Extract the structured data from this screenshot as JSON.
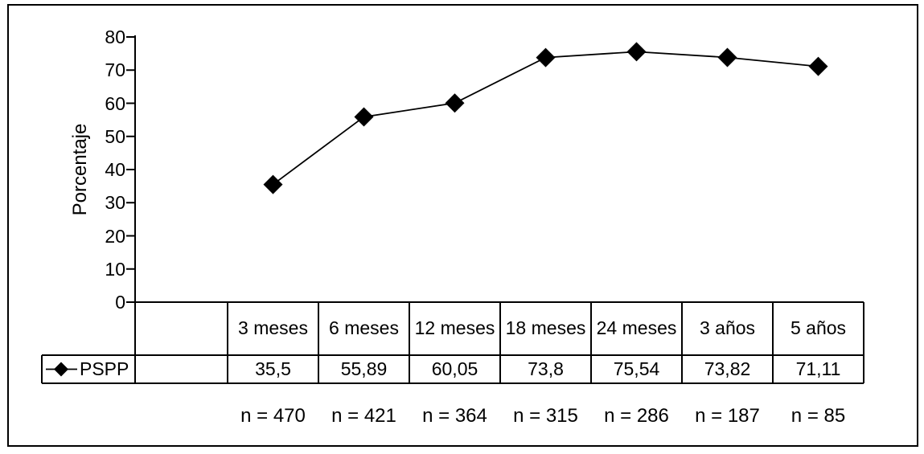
{
  "chart_data": {
    "type": "line",
    "title": "",
    "ylabel": "Porcentaje",
    "xlabel": "",
    "ylim": [
      0,
      80
    ],
    "yticks": [
      80,
      70,
      60,
      50,
      40,
      30,
      20,
      10,
      0
    ],
    "grid": false,
    "legend_position": "bottom-left-table-row",
    "categories": [
      "3 meses",
      "6 meses",
      "12 meses",
      "18 meses",
      "24 meses",
      "3 años",
      "5 años"
    ],
    "series": [
      {
        "name": "PSPP",
        "marker": "black-diamond",
        "values": [
          35.5,
          55.89,
          60.05,
          73.8,
          75.54,
          73.82,
          71.11
        ],
        "value_labels": [
          "35,5",
          "55,89",
          "60,05",
          "73,8",
          "75,54",
          "73,82",
          "71,11"
        ]
      }
    ],
    "sample_sizes": [
      "n = 470",
      "n = 421",
      "n = 364",
      "n = 315",
      "n = 286",
      "n = 187",
      "n = 85"
    ],
    "colors": {
      "foreground": "#000000",
      "background": "#ffffff"
    }
  }
}
